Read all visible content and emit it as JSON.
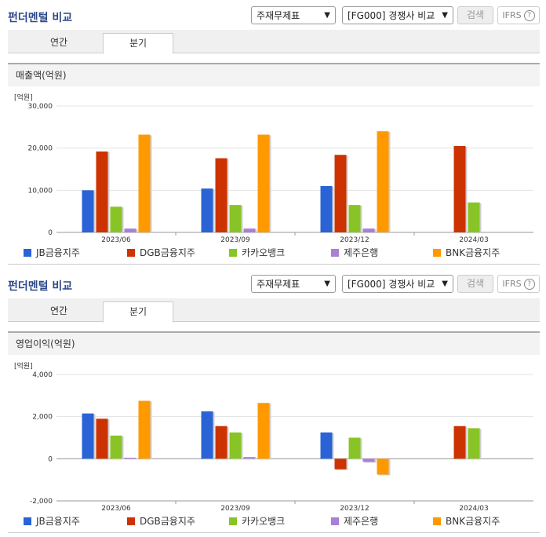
{
  "sections": [
    {
      "title": "펀더멘털 비교",
      "report_select": "주재무제표",
      "compare_select": "[FG000] 경쟁사 비교",
      "search_label": "검색",
      "ifrs_label": "IFRS",
      "tabs": [
        "연간",
        "분기"
      ],
      "active_tab": 1,
      "chart_title": "매출액(억원)",
      "unit_label": "[억원]"
    },
    {
      "title": "펀더멘털 비교",
      "report_select": "주재무제표",
      "compare_select": "[FG000] 경쟁사 비교",
      "search_label": "검색",
      "ifrs_label": "IFRS",
      "tabs": [
        "연간",
        "분기"
      ],
      "active_tab": 1,
      "chart_title": "영업이익(억원)",
      "unit_label": "[억원]"
    }
  ],
  "colors": {
    "JB금융지주": "#2a63d6",
    "DGB금융지주": "#cc3300",
    "카카오뱅크": "#88c425",
    "제주은행": "#a97fd8",
    "BNK금융지주": "#ff9900"
  },
  "chart_data": [
    {
      "type": "bar",
      "title": "매출액(억원)",
      "ylabel": "[억원]",
      "categories": [
        "2023/06",
        "2023/09",
        "2023/12",
        "2024/03"
      ],
      "ylim": [
        0,
        30000
      ],
      "yticks": [
        0,
        10000,
        20000,
        30000
      ],
      "ytick_labels": [
        "0",
        "10,000",
        "20,000",
        "30,000"
      ],
      "grid": true,
      "legend": "bottom",
      "series": [
        {
          "name": "JB금융지주",
          "values": [
            10000,
            10400,
            11000,
            null
          ]
        },
        {
          "name": "DGB금융지주",
          "values": [
            19200,
            17600,
            18400,
            20500
          ]
        },
        {
          "name": "카카오뱅크",
          "values": [
            6100,
            6500,
            6500,
            7100
          ]
        },
        {
          "name": "제주은행",
          "values": [
            900,
            900,
            900,
            null
          ]
        },
        {
          "name": "BNK금융지주",
          "values": [
            23200,
            23200,
            24000,
            null
          ]
        }
      ]
    },
    {
      "type": "bar",
      "title": "영업이익(억원)",
      "ylabel": "[억원]",
      "categories": [
        "2023/06",
        "2023/09",
        "2023/12",
        "2024/03"
      ],
      "ylim": [
        -2000,
        4000
      ],
      "yticks": [
        -2000,
        0,
        2000,
        4000
      ],
      "ytick_labels": [
        "-2,000",
        "0",
        "2,000",
        "4,000"
      ],
      "grid": true,
      "legend": "bottom",
      "series": [
        {
          "name": "JB금융지주",
          "values": [
            2150,
            2250,
            1250,
            null
          ]
        },
        {
          "name": "DGB금융지주",
          "values": [
            1900,
            1550,
            -500,
            1550
          ]
        },
        {
          "name": "카카오뱅크",
          "values": [
            1100,
            1250,
            1000,
            1450
          ]
        },
        {
          "name": "제주은행",
          "values": [
            50,
            80,
            -150,
            null
          ]
        },
        {
          "name": "BNK금융지주",
          "values": [
            2750,
            2650,
            -750,
            null
          ]
        }
      ]
    }
  ]
}
